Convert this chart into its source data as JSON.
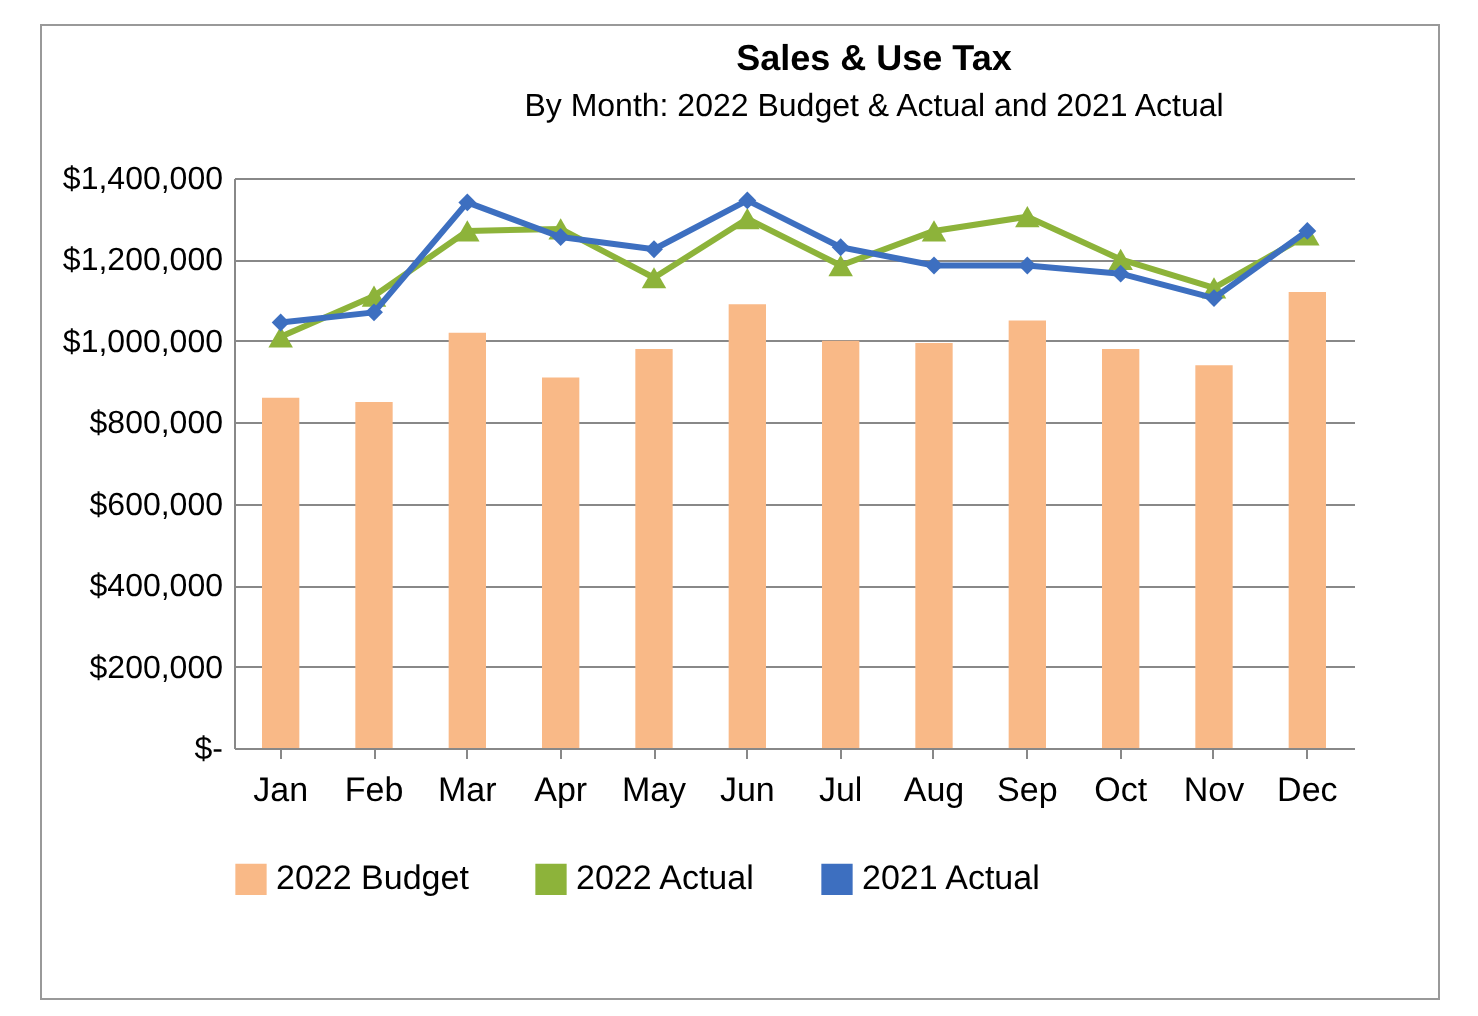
{
  "chart_data": {
    "type": "bar",
    "title": "Sales & Use Tax",
    "subtitle": "By Month: 2022 Budget & Actual and 2021 Actual",
    "categories": [
      "Jan",
      "Feb",
      "Mar",
      "Apr",
      "May",
      "Jun",
      "Jul",
      "Aug",
      "Sep",
      "Oct",
      "Nov",
      "Dec"
    ],
    "series": [
      {
        "name": "2022 Budget",
        "color": "#f9b987",
        "values": [
          860000,
          850000,
          1020000,
          910000,
          980000,
          1090000,
          1000000,
          995000,
          1050000,
          980000,
          940000,
          1120000
        ]
      },
      {
        "name": "2022 Actual",
        "type": "line",
        "marker": "triangle",
        "color": "#8db33a",
        "values": [
          1010000,
          1110000,
          1270000,
          1275000,
          1155000,
          1300000,
          1185000,
          1270000,
          1305000,
          1200000,
          1130000,
          1260000
        ]
      },
      {
        "name": "2021 Actual",
        "type": "line",
        "marker": "diamond",
        "color": "#3d6fc0",
        "values": [
          1045000,
          1070000,
          1340000,
          1255000,
          1225000,
          1345000,
          1230000,
          1185000,
          1185000,
          1165000,
          1105000,
          1270000
        ]
      }
    ],
    "ylim": [
      0,
      1400000
    ],
    "yticks": [
      {
        "value": 0,
        "label": "$-"
      },
      {
        "value": 200000,
        "label": "$200,000"
      },
      {
        "value": 400000,
        "label": "$400,000"
      },
      {
        "value": 600000,
        "label": "$600,000"
      },
      {
        "value": 800000,
        "label": "$800,000"
      },
      {
        "value": 1000000,
        "label": "$1,000,000"
      },
      {
        "value": 1200000,
        "label": "$1,200,000"
      },
      {
        "value": 1400000,
        "label": "$1,400,000"
      }
    ],
    "grid": "y",
    "legend": "bottom"
  }
}
